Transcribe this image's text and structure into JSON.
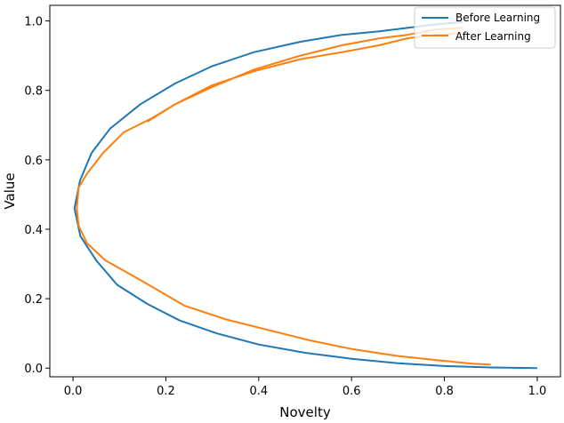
{
  "chart_data": {
    "type": "line",
    "title": "",
    "xlabel": "Novelty",
    "ylabel": "Value",
    "xlim": [
      -0.05,
      1.05
    ],
    "ylim": [
      -0.025,
      1.045
    ],
    "xticks": [
      0.0,
      0.2,
      0.4,
      0.6,
      0.8,
      1.0
    ],
    "yticks": [
      0.0,
      0.2,
      0.4,
      0.6,
      0.8,
      1.0
    ],
    "xtick_labels": [
      "0.0",
      "0.2",
      "0.4",
      "0.6",
      "0.8",
      "1.0"
    ],
    "ytick_labels": [
      "0.0",
      "0.2",
      "0.4",
      "0.6",
      "0.8",
      "1.0"
    ],
    "grid": false,
    "legend_position": "top-right",
    "series": [
      {
        "name": "Before Learning",
        "color": "#1f77b4",
        "x": [
          0.84,
          0.78,
          0.72,
          0.66,
          0.58,
          0.49,
          0.39,
          0.3,
          0.22,
          0.145,
          0.08,
          0.04,
          0.015,
          0.003,
          0.016,
          0.05,
          0.095,
          0.16,
          0.23,
          0.31,
          0.4,
          0.5,
          0.6,
          0.7,
          0.8,
          0.9,
          1.0
        ],
        "y": [
          0.997,
          0.99,
          0.98,
          0.97,
          0.96,
          0.94,
          0.91,
          0.87,
          0.82,
          0.76,
          0.69,
          0.62,
          0.54,
          0.46,
          0.38,
          0.31,
          0.24,
          0.185,
          0.137,
          0.1,
          0.068,
          0.044,
          0.027,
          0.014,
          0.006,
          0.002,
          0.0
        ]
      },
      {
        "name": "After Learning",
        "color": "#ff7f0e",
        "x": [
          0.84,
          0.78,
          0.72,
          0.66,
          0.58,
          0.49,
          0.39,
          0.3,
          0.22,
          0.17,
          0.11,
          0.065,
          0.03,
          0.012,
          0.008,
          0.012,
          0.03,
          0.07,
          0.15,
          0.24,
          0.33,
          0.42,
          0.51,
          0.6,
          0.7,
          0.79,
          0.86,
          0.9
        ],
        "y": [
          0.98,
          0.975,
          0.96,
          0.95,
          0.93,
          0.9,
          0.86,
          0.81,
          0.76,
          0.72,
          0.68,
          0.62,
          0.56,
          0.52,
          0.46,
          0.41,
          0.36,
          0.31,
          0.25,
          0.18,
          0.14,
          0.11,
          0.08,
          0.055,
          0.035,
          0.022,
          0.013,
          0.01
        ]
      },
      {
        "name": "",
        "color": "#ff7f0e",
        "x": [
          0.16,
          0.22,
          0.3,
          0.39,
          0.49,
          0.58,
          0.66,
          0.72,
          0.78,
          0.84
        ],
        "y": [
          0.71,
          0.76,
          0.815,
          0.855,
          0.89,
          0.91,
          0.93,
          0.95,
          0.96,
          0.965
        ]
      }
    ]
  },
  "legend": {
    "items": [
      {
        "label": "Before Learning",
        "color": "#1f77b4"
      },
      {
        "label": "After Learning",
        "color": "#ff7f0e"
      }
    ]
  }
}
